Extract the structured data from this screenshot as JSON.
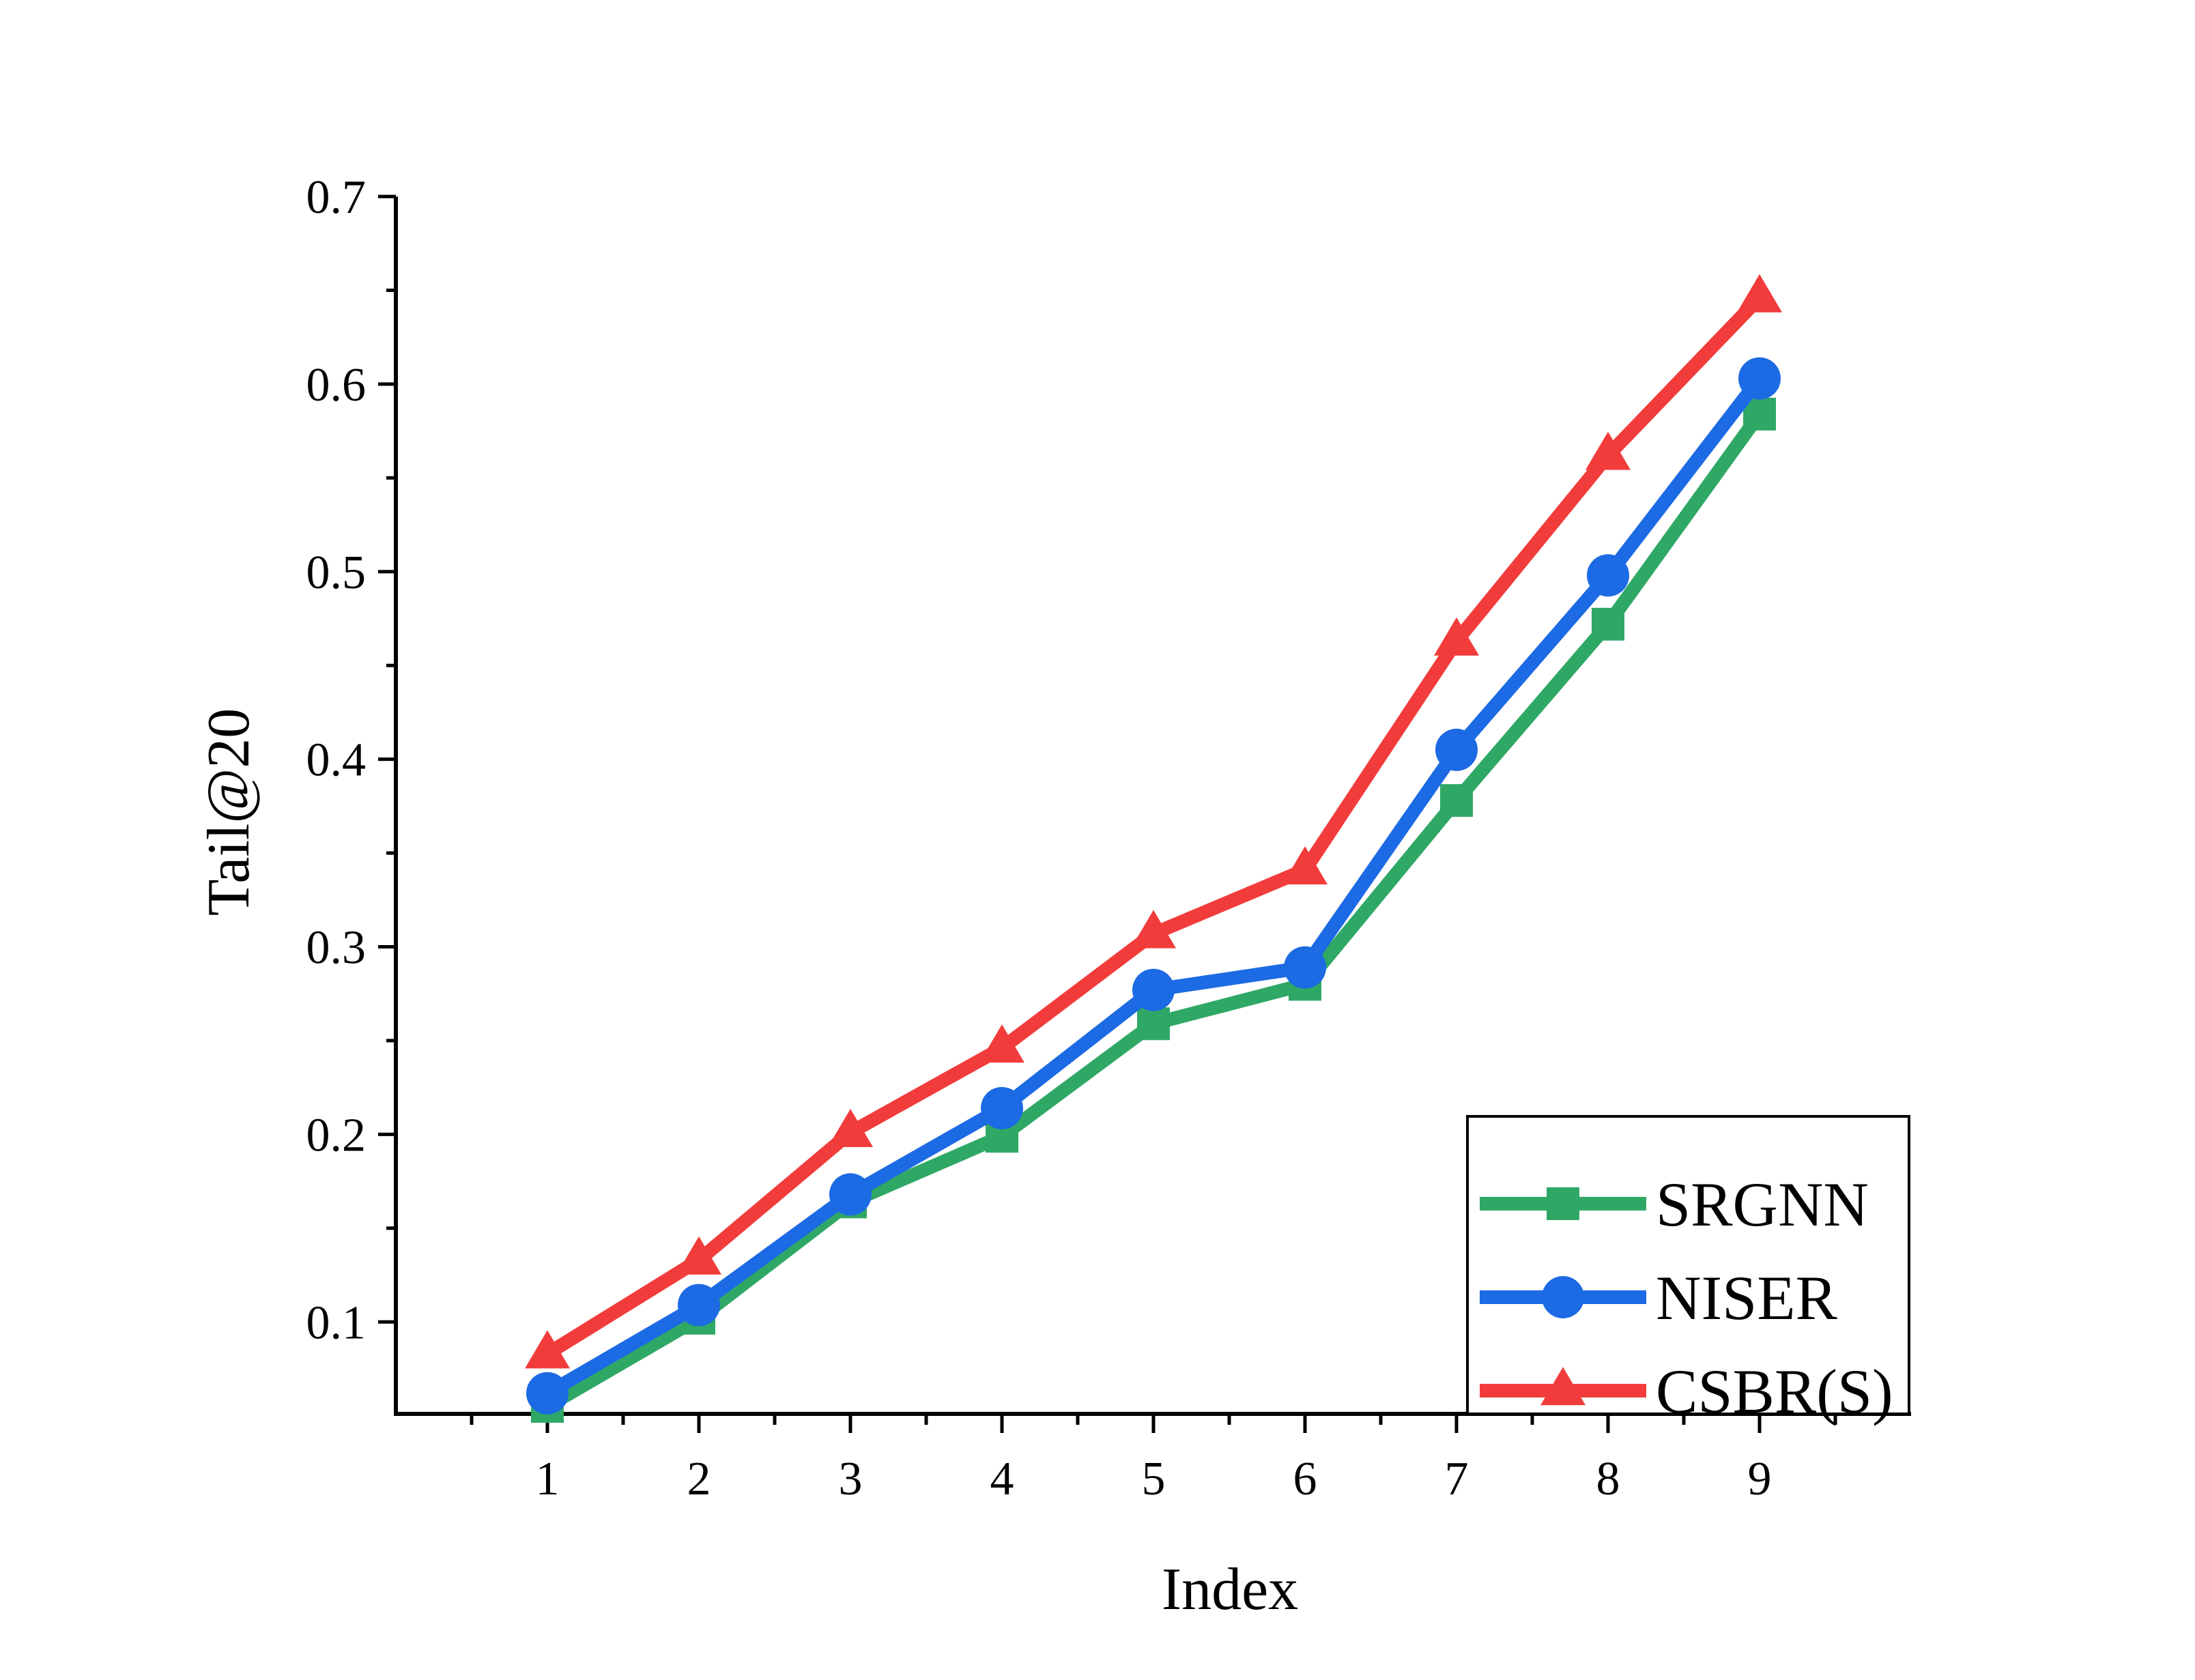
{
  "chart_data": {
    "type": "line",
    "title": "",
    "xlabel": "Index",
    "ylabel": "Tail@20",
    "x": [
      1,
      2,
      3,
      4,
      5,
      6,
      7,
      8,
      9
    ],
    "xlim": [
      0,
      10
    ],
    "ylim": [
      0.051,
      0.7
    ],
    "yticks": [
      0.1,
      0.2,
      0.3,
      0.4,
      0.5,
      0.6,
      0.7
    ],
    "yticklabels": [
      "0.1",
      "0.2",
      "0.3",
      "0.4",
      "0.5",
      "0.6",
      "0.7"
    ],
    "xticklabels": [
      "1",
      "2",
      "3",
      "4",
      "5",
      "6",
      "7",
      "8",
      "9"
    ],
    "grid": false,
    "legend_position": "bottom-right",
    "series": [
      {
        "name": "SRGNN",
        "color": "#2fa866",
        "marker": "square",
        "values": [
          0.055,
          0.102,
          0.164,
          0.199,
          0.259,
          0.28,
          0.378,
          0.472,
          0.584
        ]
      },
      {
        "name": "NISER",
        "color": "#1c6ae4",
        "marker": "circle",
        "values": [
          0.062,
          0.109,
          0.168,
          0.214,
          0.277,
          0.289,
          0.405,
          0.498,
          0.603
        ]
      },
      {
        "name": "CSBR(S)",
        "color": "#f23c3c",
        "marker": "triangle",
        "values": [
          0.083,
          0.133,
          0.201,
          0.246,
          0.307,
          0.341,
          0.463,
          0.562,
          0.646
        ]
      }
    ]
  }
}
